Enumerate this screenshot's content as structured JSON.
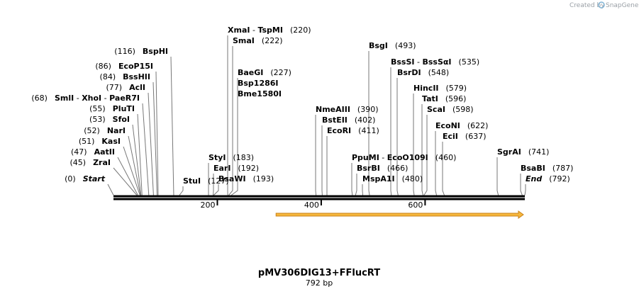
{
  "plasmid": {
    "name": "pMV306DIG13+FFlucRT",
    "size_label": "792 bp",
    "length": 792
  },
  "credit": {
    "created_by": "Created by",
    "brand": "SnapGene"
  },
  "ticks": [
    {
      "pos": 200,
      "label": "200"
    },
    {
      "pos": 400,
      "label": "400"
    },
    {
      "pos": 600,
      "label": "600"
    }
  ],
  "feature": {
    "start": 313,
    "end": 792,
    "name": "arrow-feature",
    "fill": "#f6b73c",
    "stroke": "#c8811a"
  },
  "colors": {
    "backbone": "#000000",
    "leader": "#777777"
  },
  "sites": [
    {
      "id": "start",
      "parts": [
        "Start"
      ],
      "pos": 0,
      "label": "(0)",
      "italic": true
    },
    {
      "id": "zrai",
      "parts": [
        "ZraI"
      ],
      "pos": 45,
      "label": "(45)"
    },
    {
      "id": "aatii",
      "parts": [
        "AatII"
      ],
      "pos": 47,
      "label": "(47)"
    },
    {
      "id": "kasi",
      "parts": [
        "KasI"
      ],
      "pos": 51,
      "label": "(51)"
    },
    {
      "id": "nari",
      "parts": [
        "NarI"
      ],
      "pos": 52,
      "label": "(52)"
    },
    {
      "id": "sfoi",
      "parts": [
        "SfoI"
      ],
      "pos": 53,
      "label": "(53)"
    },
    {
      "id": "pluti",
      "parts": [
        "PluTI"
      ],
      "pos": 55,
      "label": "(55)"
    },
    {
      "id": "smli",
      "parts": [
        "SmlI",
        "XhoI",
        "PaeR7I"
      ],
      "pos": 68,
      "label": "(68)"
    },
    {
      "id": "acli",
      "parts": [
        "AclI"
      ],
      "pos": 77,
      "label": "(77)"
    },
    {
      "id": "psshii",
      "parts": [
        "BssHII"
      ],
      "pos": 84,
      "label": "(84)"
    },
    {
      "id": "ecop15i",
      "parts": [
        "EcoP15I"
      ],
      "pos": 86,
      "label": "(86)"
    },
    {
      "id": "bsphi",
      "parts": [
        "BspHI"
      ],
      "pos": 116,
      "label": "(116)"
    },
    {
      "id": "stui",
      "parts": [
        "StuI"
      ],
      "pos": 127,
      "label": "(127)"
    },
    {
      "id": "styi",
      "parts": [
        "StyI"
      ],
      "pos": 183,
      "label": "(183)"
    },
    {
      "id": "eari",
      "parts": [
        "EarI"
      ],
      "pos": 192,
      "label": "(192)"
    },
    {
      "id": "bsawi",
      "parts": [
        "BsaWI"
      ],
      "pos": 193,
      "label": "(193)"
    },
    {
      "id": "xmai",
      "parts": [
        "XmaI",
        "TspMI"
      ],
      "pos": 220,
      "label": "(220)"
    },
    {
      "id": "smai",
      "parts": [
        "SmaI"
      ],
      "pos": 222,
      "label": "(222)"
    },
    {
      "id": "baegi",
      "parts": [
        "BaeGI"
      ],
      "pos": 227,
      "label": "(227)"
    },
    {
      "id": "bsp1286i",
      "parts": [
        "Bsp1286I"
      ],
      "pos": 227,
      "label": ""
    },
    {
      "id": "bme1580i",
      "parts": [
        "Bme1580I"
      ],
      "pos": 227,
      "label": ""
    },
    {
      "id": "nmeaiii",
      "parts": [
        "NmeAIII"
      ],
      "pos": 390,
      "label": "(390)"
    },
    {
      "id": "bsteii",
      "parts": [
        "BstEII"
      ],
      "pos": 402,
      "label": "(402)"
    },
    {
      "id": "ecori",
      "parts": [
        "EcoRI"
      ],
      "pos": 411,
      "label": "(411)"
    },
    {
      "id": "ppumi",
      "parts": [
        "PpuMI",
        "EcoO109I"
      ],
      "pos": 460,
      "label": "(460)"
    },
    {
      "id": "bsrbi",
      "parts": [
        "BsrBI"
      ],
      "pos": 466,
      "label": "(466)"
    },
    {
      "id": "mspa1i",
      "parts": [
        "MspA1I"
      ],
      "pos": 480,
      "label": "(480)"
    },
    {
      "id": "bsgi",
      "parts": [
        "BsgI"
      ],
      "pos": 493,
      "label": "(493)"
    },
    {
      "id": "bsssi",
      "parts": [
        "BssSI",
        "BssSαI"
      ],
      "pos": 535,
      "label": "(535)"
    },
    {
      "id": "bsrdi",
      "parts": [
        "BsrDI"
      ],
      "pos": 548,
      "label": "(548)"
    },
    {
      "id": "hincii",
      "parts": [
        "HincII"
      ],
      "pos": 579,
      "label": "(579)"
    },
    {
      "id": "tati",
      "parts": [
        "TatI"
      ],
      "pos": 596,
      "label": "(596)"
    },
    {
      "id": "scai",
      "parts": [
        "ScaI"
      ],
      "pos": 598,
      "label": "(598)"
    },
    {
      "id": "econi",
      "parts": [
        "EcoNI"
      ],
      "pos": 622,
      "label": "(622)"
    },
    {
      "id": "ecii",
      "parts": [
        "EciI"
      ],
      "pos": 637,
      "label": "(637)"
    },
    {
      "id": "sgrai",
      "parts": [
        "SgrAI"
      ],
      "pos": 741,
      "label": "(741)"
    },
    {
      "id": "bsabi",
      "parts": [
        "BsaBI"
      ],
      "pos": 787,
      "label": "(787)"
    },
    {
      "id": "end",
      "parts": [
        "End"
      ],
      "pos": 792,
      "label": "(792)",
      "italic": true
    }
  ]
}
